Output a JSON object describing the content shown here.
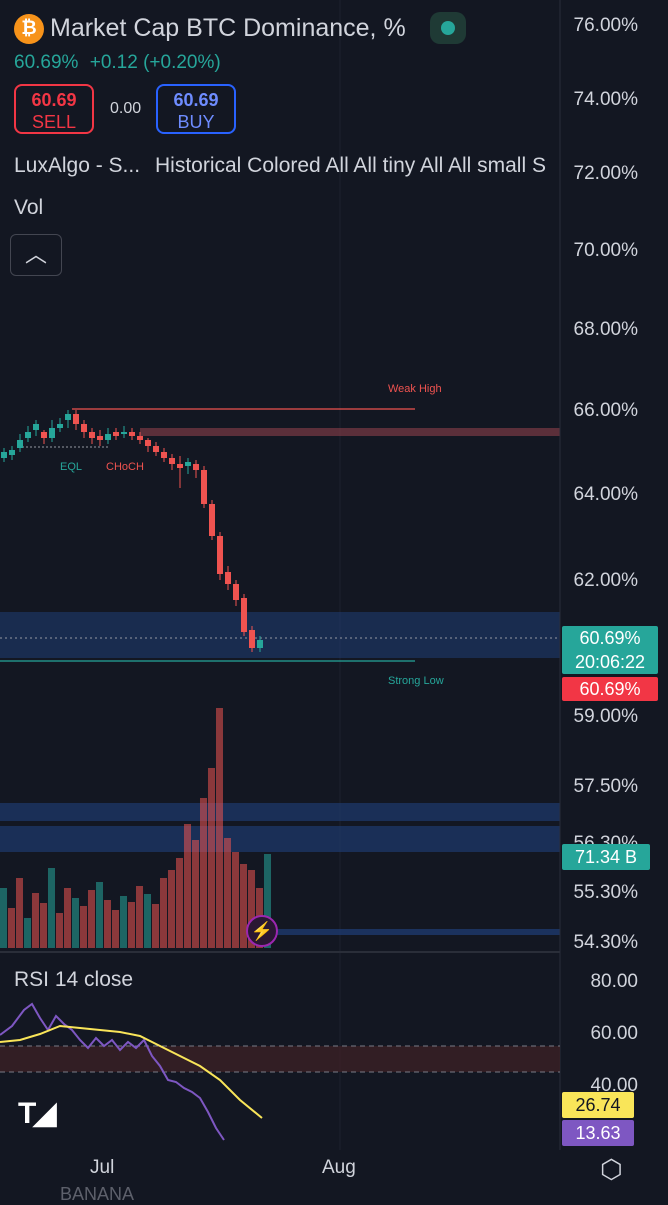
{
  "header": {
    "symbol_icon": "bitcoin-icon",
    "icon_glyph": "₿",
    "title": "Market Cap BTC Dominance, %",
    "last_price": "60.69%",
    "change": "+0.12 (+0.20%)",
    "sell_price": "60.69",
    "sell_label": "SELL",
    "spread": "0.00",
    "buy_price": "60.69",
    "buy_label": "BUY"
  },
  "indicators": {
    "luxalgo": "LuxAlgo - S...",
    "luxalgo_settings": "Historical Colored All All tiny All All small S",
    "vol": "Vol"
  },
  "price_axis": [
    "76.00%",
    "74.00%",
    "72.00%",
    "70.00%",
    "68.00%",
    "66.00%",
    "64.00%",
    "62.00%",
    "59.00%",
    "57.50%",
    "56.30%",
    "55.30%",
    "54.30%"
  ],
  "tags": {
    "current_price": "60.69%",
    "countdown": "20:06:22",
    "bid_price": "60.69%",
    "volume": "71.34 B",
    "rsi_ma": "26.74",
    "rsi": "13.63"
  },
  "annotations": {
    "weak_high": "Weak High",
    "strong_low": "Strong Low",
    "eql": "EQL",
    "choch": "CHoCH"
  },
  "rsi": {
    "title": "RSI 14 close",
    "axis": [
      "80.00",
      "60.00",
      "40.00"
    ]
  },
  "time_axis": [
    "Jul",
    "Aug"
  ],
  "bottom_partial_text": "BANANA",
  "colors": {
    "up": "#26a69a",
    "down": "#ef5350",
    "background": "#131722",
    "rsi_line": "#7e57c2",
    "rsi_ma": "#f9e559"
  }
}
